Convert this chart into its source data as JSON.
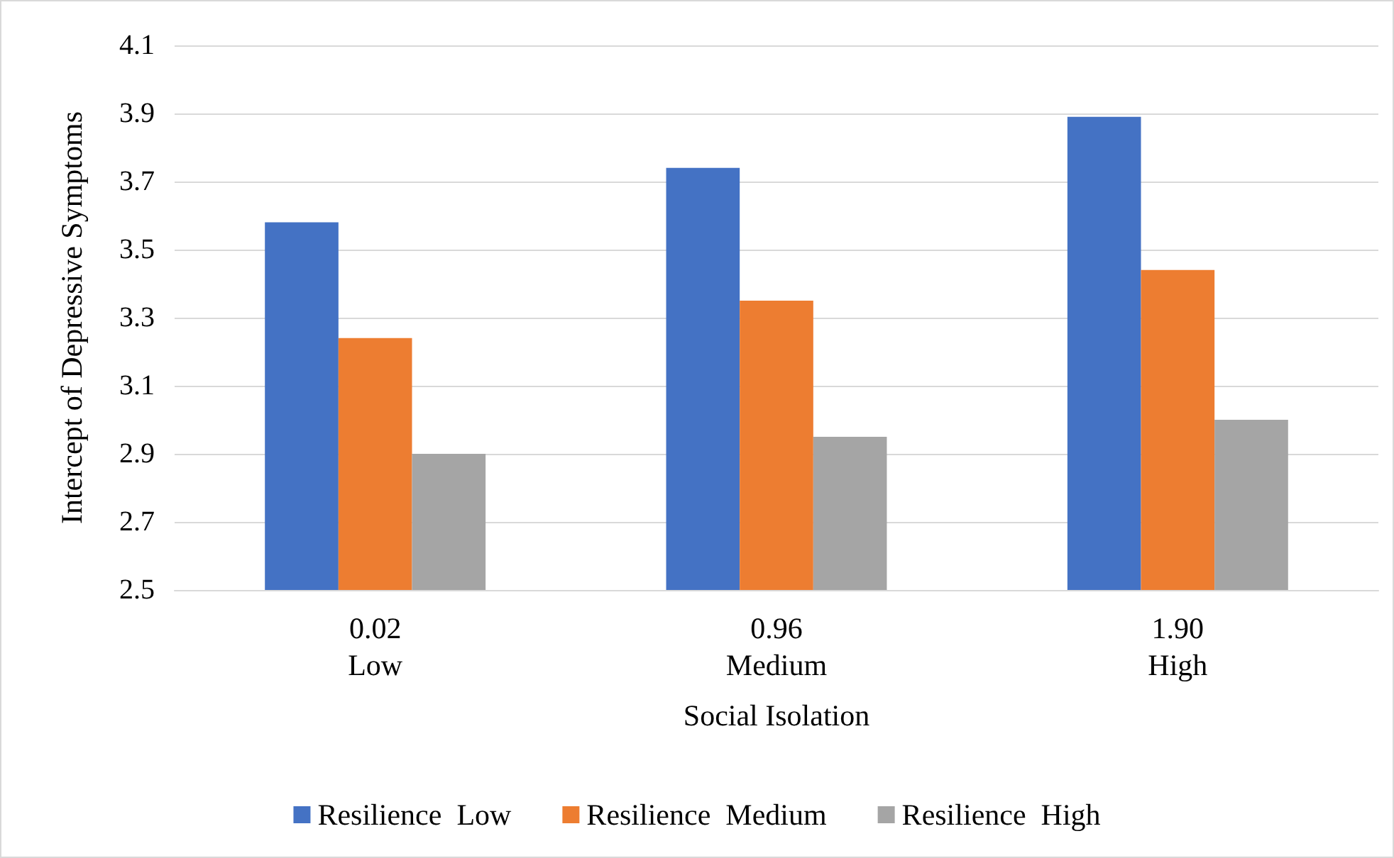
{
  "chart_data": {
    "type": "bar",
    "xlabel": "Social Isolation",
    "ylabel": "Intercept of Depressive Symptoms",
    "categories": [
      "0.02\nLow",
      "0.96\nMedium",
      "1.90\nHigh"
    ],
    "series": [
      {
        "name": "Resilience  Low",
        "color": "#4472c4",
        "values": [
          3.58,
          3.74,
          3.89
        ]
      },
      {
        "name": "Resilience  Medium",
        "color": "#ed7d31",
        "values": [
          3.24,
          3.35,
          3.44
        ]
      },
      {
        "name": "Resilience  High",
        "color": "#a5a5a5",
        "values": [
          2.9,
          2.95,
          3.0
        ]
      }
    ],
    "ylim": [
      2.5,
      4.1
    ],
    "yticks": [
      2.5,
      2.7,
      2.9,
      3.1,
      3.3,
      3.5,
      3.7,
      3.9,
      4.1
    ],
    "grid": "y",
    "legend": "bottom"
  }
}
